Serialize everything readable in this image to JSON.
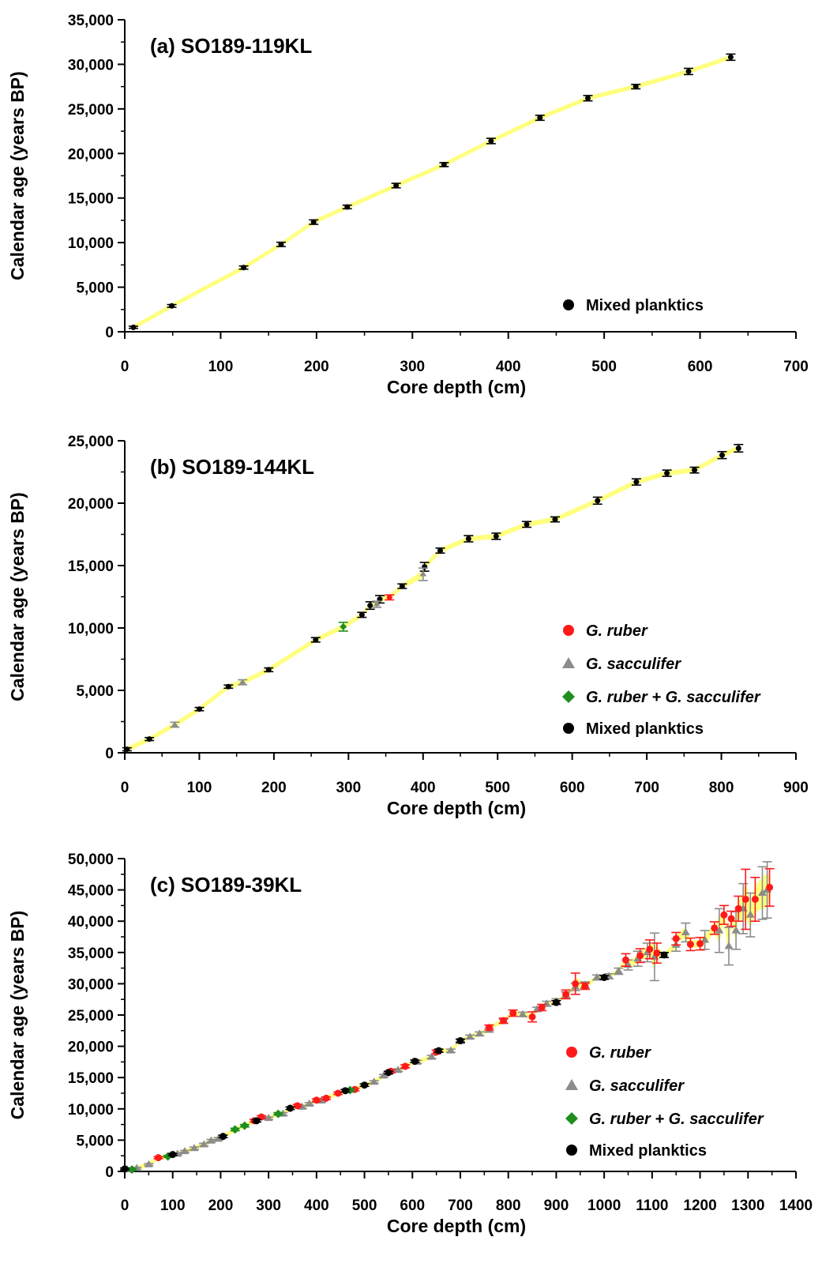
{
  "colors": {
    "envelope": "#ffff80",
    "mixed_planktics": "#000000",
    "g_ruber": "#ff1a1a",
    "g_sacculifer": "#8c8c8c",
    "g_ruber_sacculifer": "#1f8f1f",
    "axis": "#000000"
  },
  "chart_data": [
    {
      "type": "scatter",
      "title": "(a) SO189-119KL",
      "xlabel": "Core depth (cm)",
      "ylabel": "Calendar age (years BP)",
      "xlim": [
        0,
        700
      ],
      "ylim": [
        0,
        35000
      ],
      "x_ticks": [
        "0",
        "100",
        "200",
        "300",
        "400",
        "500",
        "600",
        "700"
      ],
      "y_ticks": [
        "0",
        "5,000",
        "10,000",
        "15,000",
        "20,000",
        "25,000",
        "30,000",
        "35,000"
      ],
      "legend_position": "bottom-right",
      "legend": [
        {
          "marker": "circle",
          "label": "Mixed planktics",
          "color": "mixed_planktics"
        }
      ],
      "series": [
        {
          "name": "Mixed planktics",
          "marker": "circle",
          "color": "mixed_planktics",
          "points": [
            [
              9,
              500,
              120
            ],
            [
              49,
              2900,
              150
            ],
            [
              124,
              7200,
              180
            ],
            [
              163,
              9800,
              240
            ],
            [
              197,
              12300,
              250
            ],
            [
              232,
              14000,
              200
            ],
            [
              283,
              16400,
              250
            ],
            [
              333,
              18750,
              220
            ],
            [
              382,
              21400,
              300
            ],
            [
              433,
              24000,
              280
            ],
            [
              483,
              26200,
              300
            ],
            [
              533,
              27500,
              250
            ],
            [
              588,
              29200,
              350
            ],
            [
              632,
              30800,
              350
            ]
          ]
        }
      ],
      "envelope_halfwidth": 250
    },
    {
      "type": "scatter",
      "title": "(b) SO189-144KL",
      "xlabel": "Core depth (cm)",
      "ylabel": "Calendar age (years BP)",
      "xlim": [
        0,
        900
      ],
      "ylim": [
        0,
        25000
      ],
      "x_ticks": [
        "0",
        "100",
        "200",
        "300",
        "400",
        "500",
        "600",
        "700",
        "800",
        "900"
      ],
      "y_ticks": [
        "0",
        "5,000",
        "10,000",
        "15,000",
        "20,000",
        "25,000"
      ],
      "legend_position": "right",
      "legend": [
        {
          "marker": "circle",
          "label": "G. ruber",
          "italic": true,
          "color": "g_ruber"
        },
        {
          "marker": "triangle",
          "label": "G. sacculifer",
          "italic": true,
          "color": "g_sacculifer"
        },
        {
          "marker": "diamond",
          "label": "G. ruber + G. sacculifer",
          "italic": true,
          "color": "g_ruber_sacculifer"
        },
        {
          "marker": "circle",
          "label": "Mixed planktics",
          "italic": false,
          "color": "mixed_planktics"
        }
      ],
      "series": [
        {
          "name": "Mixed planktics",
          "marker": "circle",
          "color": "mixed_planktics",
          "points": [
            [
              3,
              280,
              120
            ],
            [
              33,
              1100,
              120
            ],
            [
              100,
              3500,
              130
            ],
            [
              139,
              5300,
              130
            ],
            [
              193,
              6650,
              150
            ],
            [
              256,
              9050,
              180
            ],
            [
              318,
              11050,
              200
            ],
            [
              329,
              11800,
              300
            ],
            [
              342,
              12300,
              300
            ],
            [
              372,
              13350,
              180
            ],
            [
              402,
              14900,
              350
            ],
            [
              423,
              16200,
              200
            ],
            [
              461,
              17150,
              250
            ],
            [
              498,
              17350,
              250
            ],
            [
              539,
              18300,
              230
            ],
            [
              577,
              18700,
              200
            ],
            [
              634,
              20200,
              280
            ],
            [
              686,
              21700,
              250
            ],
            [
              727,
              22400,
              250
            ],
            [
              764,
              22650,
              230
            ],
            [
              801,
              23850,
              280
            ],
            [
              823,
              24400,
              300
            ]
          ]
        },
        {
          "name": "G. ruber",
          "marker": "circle",
          "color": "g_ruber",
          "points": [
            [
              355,
              12450,
              200
            ]
          ]
        },
        {
          "name": "G. sacculifer",
          "marker": "triangle",
          "color": "g_sacculifer",
          "points": [
            [
              67,
              2250,
              200
            ],
            [
              158,
              5650,
              200
            ],
            [
              338,
              11900,
              250
            ],
            [
              400,
              14300,
              500
            ]
          ]
        },
        {
          "name": "G. ruber + G. sacculifer",
          "marker": "diamond",
          "color": "g_ruber_sacculifer",
          "points": [
            [
              293,
              10100,
              350
            ]
          ]
        }
      ],
      "envelope_halfwidth": 200
    },
    {
      "type": "scatter",
      "title": "(c) SO189-39KL",
      "xlabel": "Core depth (cm)",
      "ylabel": "Calendar age (years BP)",
      "xlim": [
        0,
        1400
      ],
      "ylim": [
        0,
        50000
      ],
      "x_ticks": [
        "0",
        "100",
        "200",
        "300",
        "400",
        "500",
        "600",
        "700",
        "800",
        "900",
        "1000",
        "1100",
        "1200",
        "1300",
        "1400"
      ],
      "y_ticks": [
        "0",
        "5,000",
        "10,000",
        "15,000",
        "20,000",
        "25,000",
        "30,000",
        "35,000",
        "40,000",
        "45,000",
        "50,000"
      ],
      "legend_position": "right",
      "legend": [
        {
          "marker": "circle",
          "label": "G. ruber",
          "italic": true,
          "color": "g_ruber"
        },
        {
          "marker": "triangle",
          "label": "G. sacculifer",
          "italic": true,
          "color": "g_sacculifer"
        },
        {
          "marker": "diamond",
          "label": "G. ruber + G. sacculifer",
          "italic": true,
          "color": "g_ruber_sacculifer"
        },
        {
          "marker": "circle",
          "label": "Mixed planktics",
          "italic": false,
          "color": "mixed_planktics"
        }
      ],
      "series": [
        {
          "name": "G. sacculifer",
          "marker": "triangle",
          "color": "g_sacculifer",
          "points": [
            [
              5,
              300,
              150
            ],
            [
              25,
              500,
              150
            ],
            [
              50,
              1100,
              150
            ],
            [
              110,
              2800,
              150
            ],
            [
              125,
              3200,
              150
            ],
            [
              145,
              3700,
              200
            ],
            [
              165,
              4300,
              200
            ],
            [
              180,
              4900,
              200
            ],
            [
              195,
              5200,
              200
            ],
            [
              300,
              8500,
              200
            ],
            [
              330,
              9200,
              200
            ],
            [
              370,
              10300,
              200
            ],
            [
              385,
              10800,
              200
            ],
            [
              410,
              11300,
              200
            ],
            [
              470,
              13000,
              200
            ],
            [
              520,
              14300,
              200
            ],
            [
              540,
              15300,
              200
            ],
            [
              570,
              16200,
              200
            ],
            [
              610,
              17500,
              250
            ],
            [
              640,
              18300,
              250
            ],
            [
              680,
              19300,
              250
            ],
            [
              700,
              20800,
              300
            ],
            [
              720,
              21500,
              300
            ],
            [
              740,
              22000,
              300
            ],
            [
              760,
              22600,
              300
            ],
            [
              790,
              24000,
              350
            ],
            [
              830,
              25100,
              350
            ],
            [
              860,
              25900,
              350
            ],
            [
              880,
              26800,
              400
            ],
            [
              900,
              27200,
              400
            ],
            [
              920,
              28200,
              500
            ],
            [
              940,
              29500,
              600
            ],
            [
              960,
              29800,
              500
            ],
            [
              985,
              31000,
              400
            ],
            [
              1010,
              31200,
              400
            ],
            [
              1030,
              32000,
              500
            ],
            [
              1050,
              33000,
              800
            ],
            [
              1070,
              34000,
              1200
            ],
            [
              1090,
              35000,
              1500
            ],
            [
              1105,
              34300,
              3800
            ],
            [
              1150,
              36200,
              1000
            ],
            [
              1170,
              38200,
              1500
            ],
            [
              1210,
              37000,
              1500
            ],
            [
              1240,
              38500,
              3500
            ],
            [
              1260,
              36000,
              3000
            ],
            [
              1275,
              38500,
              3000
            ],
            [
              1290,
              42000,
              4000
            ],
            [
              1305,
              41000,
              3500
            ],
            [
              1330,
              44500,
              4200
            ],
            [
              1340,
              45000,
              4500
            ]
          ]
        },
        {
          "name": "G. ruber",
          "marker": "circle",
          "color": "g_ruber",
          "points": [
            [
              70,
              2200,
              150
            ],
            [
              270,
              8100,
              200
            ],
            [
              285,
              8700,
              200
            ],
            [
              360,
              10500,
              200
            ],
            [
              400,
              11400,
              200
            ],
            [
              420,
              11700,
              200
            ],
            [
              445,
              12500,
              200
            ],
            [
              480,
              13100,
              200
            ],
            [
              555,
              16000,
              250
            ],
            [
              585,
              16800,
              250
            ],
            [
              650,
              19100,
              300
            ],
            [
              760,
              23000,
              400
            ],
            [
              790,
              24100,
              400
            ],
            [
              810,
              25300,
              500
            ],
            [
              850,
              24700,
              800
            ],
            [
              870,
              26200,
              500
            ],
            [
              920,
              28300,
              700
            ],
            [
              940,
              30000,
              1700
            ],
            [
              960,
              29600,
              500
            ],
            [
              1045,
              33800,
              1000
            ],
            [
              1075,
              34500,
              1100
            ],
            [
              1095,
              35500,
              1500
            ],
            [
              1110,
              34900,
              1600
            ],
            [
              1150,
              37200,
              1000
            ],
            [
              1180,
              36300,
              1000
            ],
            [
              1200,
              36400,
              1000
            ],
            [
              1230,
              38900,
              1000
            ],
            [
              1250,
              41000,
              1500
            ],
            [
              1265,
              40400,
              1200
            ],
            [
              1280,
              42000,
              2000
            ],
            [
              1295,
              43500,
              4800
            ],
            [
              1315,
              43500,
              3500
            ],
            [
              1345,
              45400,
              3000
            ]
          ]
        },
        {
          "name": "G. ruber + G. sacculifer",
          "marker": "diamond",
          "color": "g_ruber_sacculifer",
          "points": [
            [
              15,
              300,
              150
            ],
            [
              90,
              2400,
              150
            ],
            [
              230,
              6700,
              200
            ],
            [
              250,
              7300,
              200
            ],
            [
              320,
              9200,
              200
            ],
            [
              470,
              13000,
              200
            ]
          ]
        },
        {
          "name": "Mixed planktics",
          "marker": "circle",
          "color": "mixed_planktics",
          "points": [
            [
              0,
              400,
              150
            ],
            [
              100,
              2700,
              150
            ],
            [
              205,
              5600,
              200
            ],
            [
              275,
              8100,
              200
            ],
            [
              345,
              10100,
              200
            ],
            [
              460,
              12900,
              200
            ],
            [
              500,
              13800,
              200
            ],
            [
              550,
              15800,
              200
            ],
            [
              605,
              17600,
              200
            ],
            [
              655,
              19300,
              250
            ],
            [
              700,
              20900,
              250
            ],
            [
              900,
              27000,
              300
            ],
            [
              1000,
              31000,
              300
            ],
            [
              1125,
              34600,
              400
            ]
          ]
        }
      ],
      "envelope_halfwidth": 350
    }
  ]
}
